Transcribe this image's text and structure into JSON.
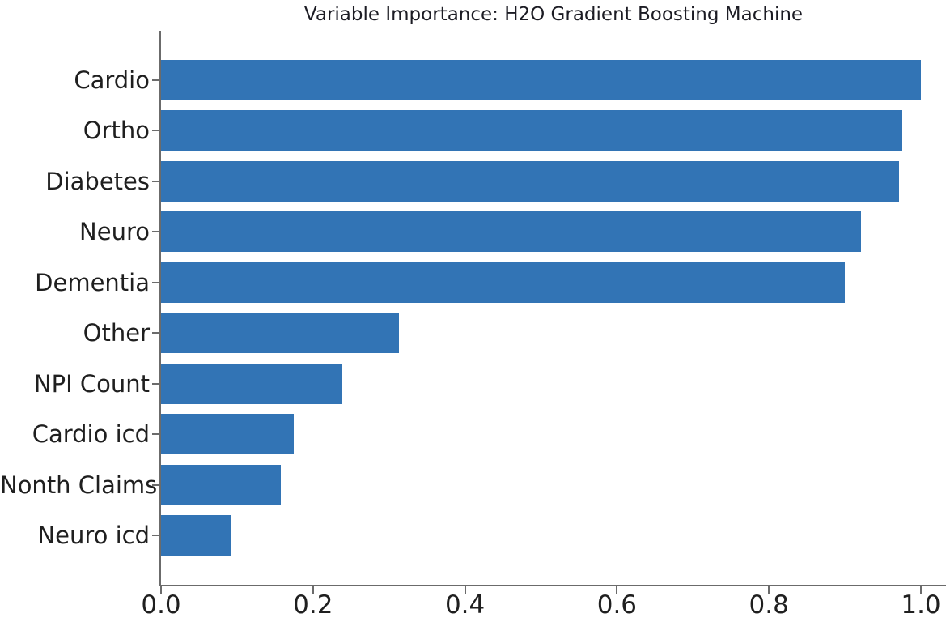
{
  "chart_data": {
    "type": "bar",
    "orientation": "horizontal",
    "title": "Variable Importance: H2O Gradient Boosting Machine",
    "categories": [
      "Cardio",
      "Ortho",
      "Diabetes",
      "Neuro",
      "Dementia",
      "Other",
      "NPI Count",
      "Cardio icd",
      "Nonth Claims",
      "Neuro icd"
    ],
    "values": [
      1.0,
      0.975,
      0.971,
      0.921,
      0.9,
      0.313,
      0.239,
      0.175,
      0.158,
      0.092
    ],
    "xlabel": "",
    "ylabel": "",
    "xlim": [
      0.0,
      1.033
    ],
    "xticks": [
      0.0,
      0.2,
      0.4,
      0.6,
      0.8,
      1.0
    ],
    "xtick_labels": [
      "0.0",
      "0.2",
      "0.4",
      "0.6",
      "0.8",
      "1.0"
    ],
    "bar_color": "#3274b5",
    "axis_color": "#6b6b6b",
    "text_color": "#1f1f1f",
    "grid": false,
    "legend": null
  }
}
